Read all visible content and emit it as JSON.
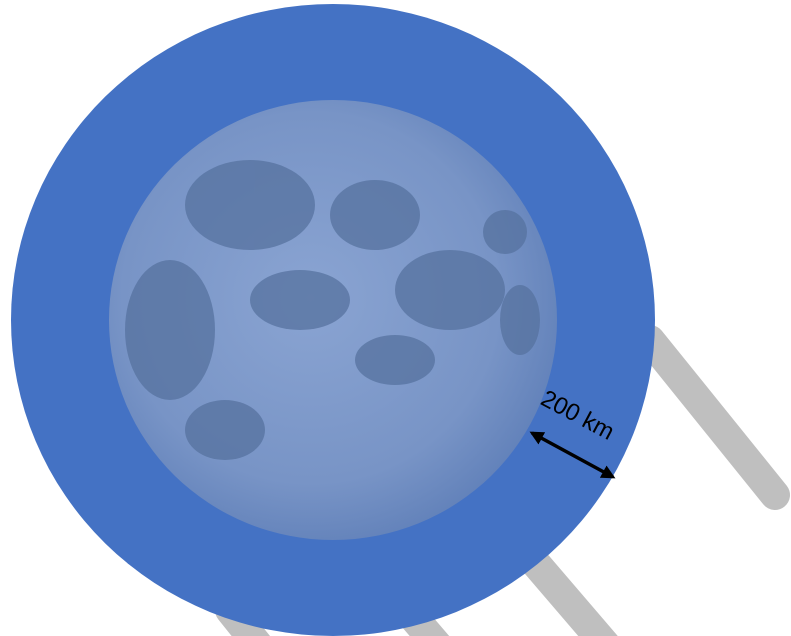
{
  "label": "200 km"
}
